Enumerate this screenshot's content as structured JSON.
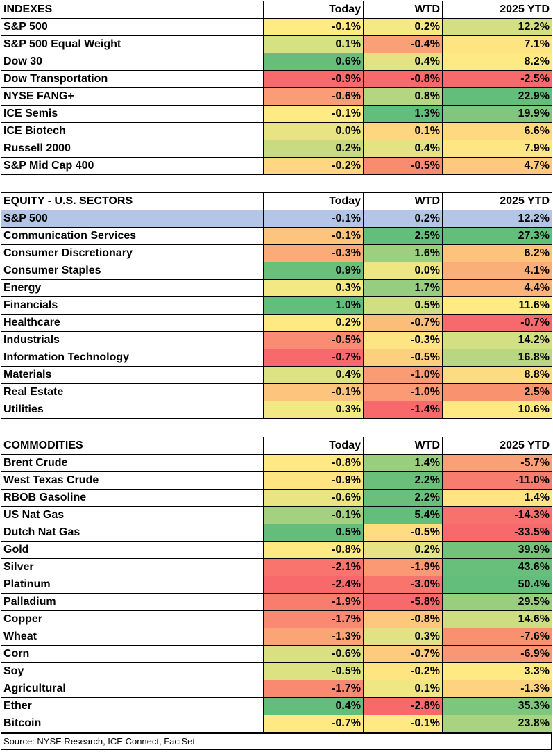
{
  "tables": [
    {
      "id": "indexes",
      "header": [
        "INDEXES",
        "Today",
        "WTD",
        "2025 YTD"
      ],
      "rows": [
        {
          "name": "S&P 500",
          "today": "-0.1%",
          "wtd": "0.2%",
          "ytd": "12.2%",
          "colors": [
            "#FEEB84",
            "#F4E984",
            "#D3DF82"
          ]
        },
        {
          "name": "S&P 500 Equal Weight",
          "today": "0.1%",
          "wtd": "-0.4%",
          "ytd": "7.1%",
          "colors": [
            "#D6E181",
            "#F9A077",
            "#FEE582"
          ]
        },
        {
          "name": "Dow 30",
          "today": "0.6%",
          "wtd": "0.4%",
          "ytd": "8.2%",
          "colors": [
            "#66BE7A",
            "#E3E383",
            "#FEE983"
          ]
        },
        {
          "name": "Dow Transportation",
          "today": "-0.9%",
          "wtd": "-0.8%",
          "ytd": "-2.5%",
          "colors": [
            "#F8696B",
            "#F8696B",
            "#F8696B"
          ]
        },
        {
          "name": "NYSE FANG+",
          "today": "-0.6%",
          "wtd": "0.8%",
          "ytd": "22.9%",
          "colors": [
            "#FA9C75",
            "#B5D680",
            "#63BE7B"
          ]
        },
        {
          "name": "ICE Semis",
          "today": "-0.1%",
          "wtd": "1.3%",
          "ytd": "19.9%",
          "colors": [
            "#FEEB84",
            "#63BE7B",
            "#80C77D"
          ]
        },
        {
          "name": "ICE Biotech",
          "today": "0.0%",
          "wtd": "0.1%",
          "ytd": "6.6%",
          "colors": [
            "#E8E483",
            "#FED680",
            "#FED980"
          ]
        },
        {
          "name": "Russell 2000",
          "today": "0.2%",
          "wtd": "0.4%",
          "ytd": "7.9%",
          "colors": [
            "#C9DB81",
            "#E3E383",
            "#FEE783"
          ]
        },
        {
          "name": "S&P Mid Cap 400",
          "today": "-0.2%",
          "wtd": "-0.5%",
          "ytd": "4.7%",
          "colors": [
            "#FED780",
            "#F98B71",
            "#FDCA7D"
          ]
        }
      ]
    },
    {
      "id": "sectors",
      "header": [
        "EQUITY - U.S. SECTORS",
        "Today",
        "WTD",
        "2025 YTD"
      ],
      "highlight": {
        "name": "S&P 500",
        "today": "-0.1%",
        "wtd": "0.2%",
        "ytd": "12.2%",
        "color": "#B4C6E7"
      },
      "rows": [
        {
          "name": "Communication Services",
          "today": "-0.1%",
          "wtd": "2.5%",
          "ytd": "27.3%",
          "colors": [
            "#FDC47D",
            "#63BE7B",
            "#63BE7B"
          ]
        },
        {
          "name": "Consumer Discretionary",
          "today": "-0.3%",
          "wtd": "1.6%",
          "ytd": "6.2%",
          "colors": [
            "#FBAB78",
            "#9CCF7F",
            "#FDC27C"
          ]
        },
        {
          "name": "Consumer Staples",
          "today": "0.9%",
          "wtd": "0.0%",
          "ytd": "4.1%",
          "colors": [
            "#6AC07B",
            "#EEE683",
            "#FBAE78"
          ]
        },
        {
          "name": "Energy",
          "today": "0.3%",
          "wtd": "1.7%",
          "ytd": "4.4%",
          "colors": [
            "#F2E884",
            "#97CD7E",
            "#FBB379"
          ]
        },
        {
          "name": "Financials",
          "today": "1.0%",
          "wtd": "0.5%",
          "ytd": "11.6%",
          "colors": [
            "#63BE7B",
            "#D0DF82",
            "#FEEB84"
          ]
        },
        {
          "name": "Healthcare",
          "today": "0.2%",
          "wtd": "-0.7%",
          "ytd": "-0.7%",
          "colors": [
            "#FEE983",
            "#FCBD7B",
            "#F8696B"
          ]
        },
        {
          "name": "Industrials",
          "today": "-0.5%",
          "wtd": "-0.3%",
          "ytd": "14.2%",
          "colors": [
            "#F98C72",
            "#FEE583",
            "#D2DF82"
          ]
        },
        {
          "name": "Information Technology",
          "today": "-0.7%",
          "wtd": "-0.5%",
          "ytd": "16.8%",
          "colors": [
            "#F8696B",
            "#FDD07E",
            "#B9D780"
          ]
        },
        {
          "name": "Materials",
          "today": "0.4%",
          "wtd": "-1.0%",
          "ytd": "8.8%",
          "colors": [
            "#DDE283",
            "#FA9B75",
            "#FDDB81"
          ]
        },
        {
          "name": "Real Estate",
          "today": "-0.1%",
          "wtd": "-1.0%",
          "ytd": "2.5%",
          "colors": [
            "#FDC47D",
            "#FA9B75",
            "#F9936F"
          ]
        },
        {
          "name": "Utilities",
          "today": "0.3%",
          "wtd": "-1.4%",
          "ytd": "10.6%",
          "colors": [
            "#F2E884",
            "#F8696B",
            "#FEE983"
          ]
        }
      ]
    },
    {
      "id": "commodities",
      "header": [
        "COMMODITIES",
        "Today",
        "WTD",
        "2025 YTD"
      ],
      "rows": [
        {
          "name": "Brent Crude",
          "today": "-0.8%",
          "wtd": "1.4%",
          "ytd": "-5.7%",
          "colors": [
            "#FEE983",
            "#99CE7F",
            "#FAA076"
          ]
        },
        {
          "name": "West Texas Crude",
          "today": "-0.9%",
          "wtd": "2.2%",
          "ytd": "-11.0%",
          "colors": [
            "#FEE582",
            "#6AC07B",
            "#F97D6E"
          ]
        },
        {
          "name": "RBOB Gasoline",
          "today": "-0.6%",
          "wtd": "2.2%",
          "ytd": "1.4%",
          "colors": [
            "#EAE583",
            "#6AC07B",
            "#FEE482"
          ]
        },
        {
          "name": "US Nat Gas",
          "today": "-0.1%",
          "wtd": "5.4%",
          "ytd": "-14.3%",
          "colors": [
            "#A4D17F",
            "#63BE7B",
            "#F8716C"
          ]
        },
        {
          "name": "Dutch Nat Gas",
          "today": "0.5%",
          "wtd": "-0.5%",
          "ytd": "-33.5%",
          "colors": [
            "#63BE7B",
            "#FEDD81",
            "#F8696B"
          ]
        },
        {
          "name": "Gold",
          "today": "-0.8%",
          "wtd": "0.2%",
          "ytd": "39.9%",
          "colors": [
            "#FEE983",
            "#E5E383",
            "#72C27C"
          ]
        },
        {
          "name": "Silver",
          "today": "-2.1%",
          "wtd": "-1.9%",
          "ytd": "43.6%",
          "colors": [
            "#F8746D",
            "#FA9974",
            "#67BF7B"
          ]
        },
        {
          "name": "Platinum",
          "today": "-2.4%",
          "wtd": "-3.0%",
          "ytd": "50.4%",
          "colors": [
            "#F8696B",
            "#F8746D",
            "#63BE7B"
          ]
        },
        {
          "name": "Palladium",
          "today": "-1.9%",
          "wtd": "-5.8%",
          "ytd": "29.5%",
          "colors": [
            "#F97D6E",
            "#F8696B",
            "#99CE7F"
          ]
        },
        {
          "name": "Copper",
          "today": "-1.7%",
          "wtd": "-0.8%",
          "ytd": "14.6%",
          "colors": [
            "#F98A71",
            "#FDC87D",
            "#CCDD82"
          ]
        },
        {
          "name": "Wheat",
          "today": "-1.3%",
          "wtd": "0.3%",
          "ytd": "-7.6%",
          "colors": [
            "#FBA577",
            "#E0E283",
            "#F99171"
          ]
        },
        {
          "name": "Corn",
          "today": "-0.6%",
          "wtd": "-0.7%",
          "ytd": "-6.9%",
          "colors": [
            "#D8E082",
            "#FDCB7D",
            "#F99673"
          ]
        },
        {
          "name": "Soy",
          "today": "-0.5%",
          "wtd": "-0.2%",
          "ytd": "3.3%",
          "colors": [
            "#DCE182",
            "#FEE582",
            "#FEE983"
          ]
        },
        {
          "name": "Agricultural",
          "today": "-1.7%",
          "wtd": "0.1%",
          "ytd": "-1.3%",
          "colors": [
            "#F98A71",
            "#F0E784",
            "#FDD37F"
          ]
        },
        {
          "name": "Ether",
          "today": "0.4%",
          "wtd": "-2.8%",
          "ytd": "35.3%",
          "colors": [
            "#63BE7B",
            "#F8696B",
            "#7DC67D"
          ]
        },
        {
          "name": "Bitcoin",
          "today": "-0.7%",
          "wtd": "-0.1%",
          "ytd": "23.8%",
          "colors": [
            "#FEE983",
            "#FEE983",
            "#A8D380"
          ]
        }
      ]
    }
  ],
  "source": "Source: NYSE Research, ICE Connect, FactSet"
}
